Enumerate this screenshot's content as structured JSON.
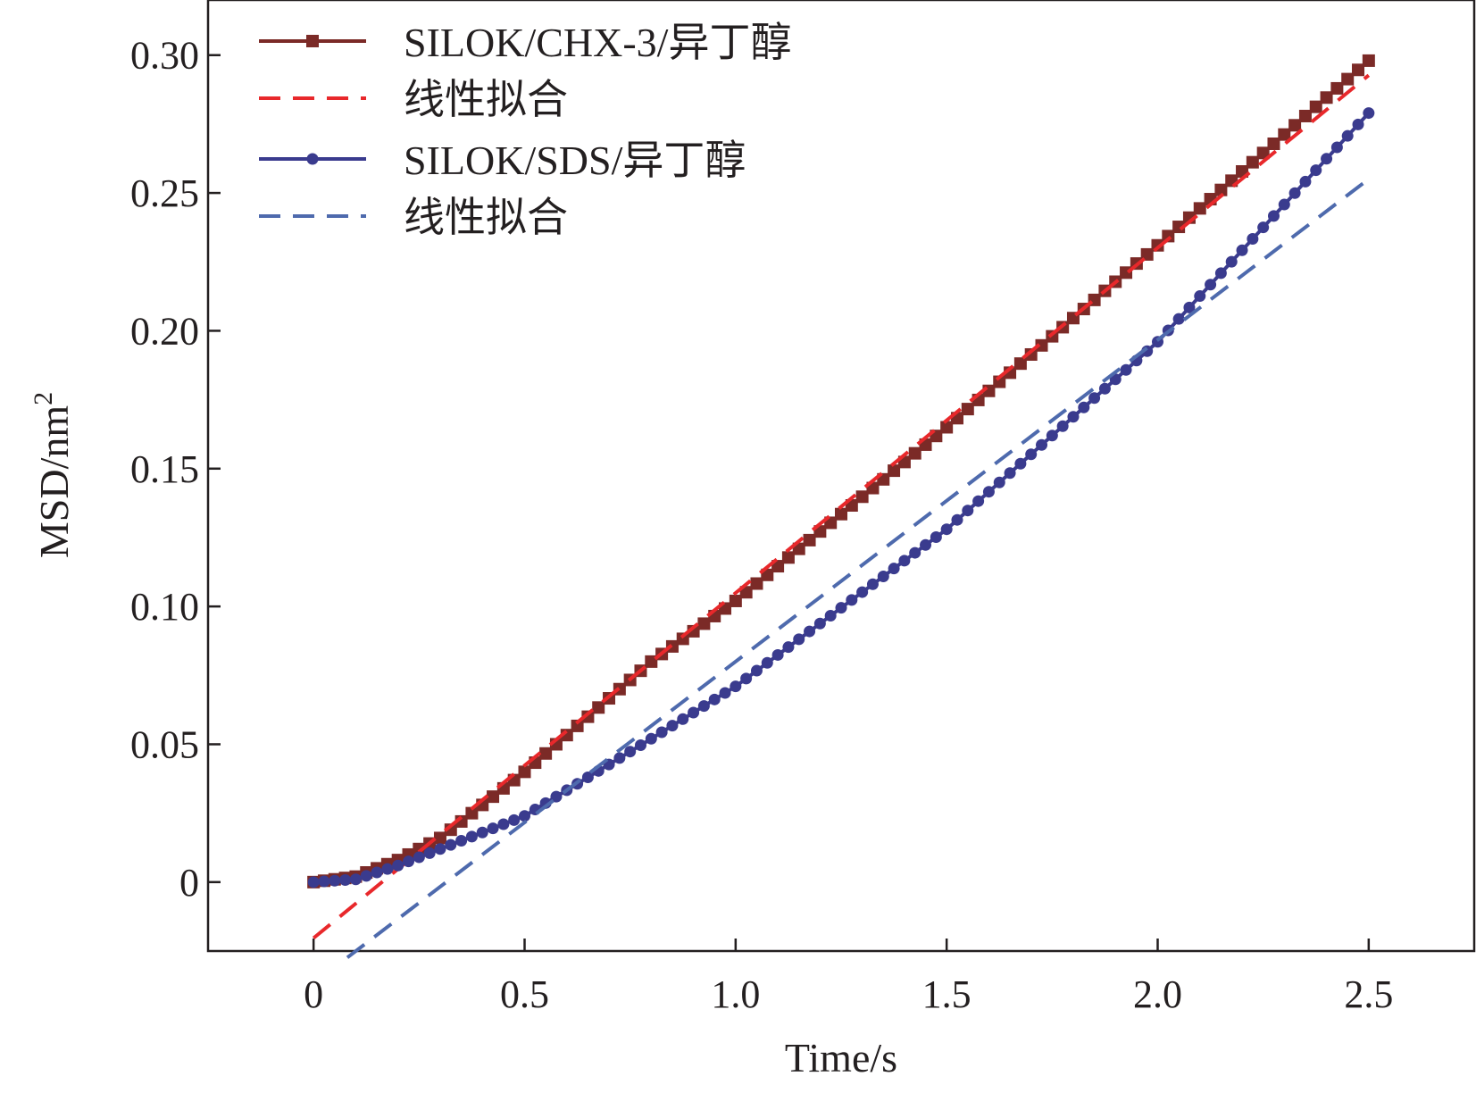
{
  "chart_data": {
    "type": "line",
    "title": "",
    "xlabel": "Time/s",
    "ylabel": "MSD/nm",
    "ylabel_superscript": "2",
    "xlim": [
      -0.25,
      2.75
    ],
    "ylim": [
      -0.025,
      0.32
    ],
    "xticks": [
      {
        "value": 0,
        "label": "0"
      },
      {
        "value": 0.5,
        "label": "0.5"
      },
      {
        "value": 1.0,
        "label": "1.0"
      },
      {
        "value": 1.5,
        "label": "1.5"
      },
      {
        "value": 2.0,
        "label": "2.0"
      },
      {
        "value": 2.5,
        "label": "2.5"
      }
    ],
    "yticks": [
      {
        "value": 0,
        "label": "0"
      },
      {
        "value": 0.05,
        "label": "0.05"
      },
      {
        "value": 0.1,
        "label": "0.10"
      },
      {
        "value": 0.15,
        "label": "0.15"
      },
      {
        "value": 0.2,
        "label": "0.20"
      },
      {
        "value": 0.25,
        "label": "0.25"
      },
      {
        "value": 0.3,
        "label": "0.30"
      }
    ],
    "grid": false,
    "legend_position": "top-left",
    "series": [
      {
        "name": "SILOK/CHX-3/异丁醇",
        "kind": "data",
        "marker": "square",
        "color": "#7b2a27",
        "x_start": 0,
        "x_end": 2.5,
        "x_step": 0.025,
        "fit_slope": 0.1252,
        "fit_intercept": -0.0203,
        "sample_x": [
          0,
          0.1,
          0.2,
          0.3,
          0.5,
          0.8,
          1.0,
          1.5,
          2.0,
          2.5
        ],
        "sample_y": [
          0.0,
          0.002,
          0.008,
          0.016,
          0.04,
          0.08,
          0.102,
          0.165,
          0.231,
          0.298
        ]
      },
      {
        "name": "线性拟合",
        "kind": "fit",
        "color": "#e8282b",
        "dash": "dashed",
        "x_start": 0,
        "x_end": 2.5,
        "slope": 0.1252,
        "intercept": -0.0203
      },
      {
        "name": "SILOK/SDS/异丁醇",
        "kind": "data",
        "marker": "circle",
        "color": "#3a3b8e",
        "x_start": 0,
        "x_end": 2.5,
        "x_step": 0.025,
        "fit_slope": 0.1167,
        "fit_intercept": -0.0367,
        "sample_x": [
          0,
          0.1,
          0.2,
          0.3,
          0.5,
          0.8,
          1.0,
          1.5,
          2.0,
          2.5
        ],
        "sample_y": [
          0.0,
          0.001,
          0.006,
          0.012,
          0.024,
          0.052,
          0.071,
          0.128,
          0.196,
          0.279
        ]
      },
      {
        "name": "线性拟合",
        "kind": "fit",
        "color": "#4e6aad",
        "dash": "dashed",
        "x_start": 0.08,
        "x_end": 2.5,
        "slope": 0.1167,
        "intercept": -0.0367
      }
    ]
  }
}
